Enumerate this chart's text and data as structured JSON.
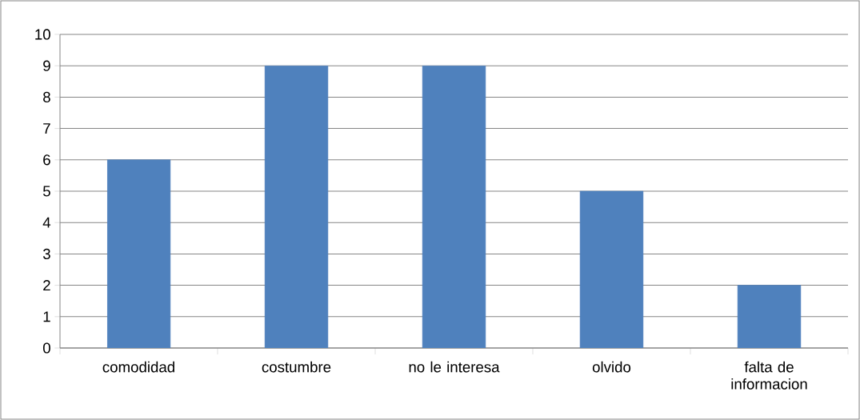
{
  "chart_data": {
    "type": "bar",
    "categories": [
      "comodidad",
      "costumbre",
      "no le interesa",
      "olvido",
      "falta de informacion"
    ],
    "values": [
      6,
      9,
      9,
      5,
      2
    ],
    "color": "#4f81bd",
    "ylim": [
      0,
      10
    ],
    "yticks": [
      0,
      1,
      2,
      3,
      4,
      5,
      6,
      7,
      8,
      9,
      10
    ],
    "grid": "y"
  }
}
